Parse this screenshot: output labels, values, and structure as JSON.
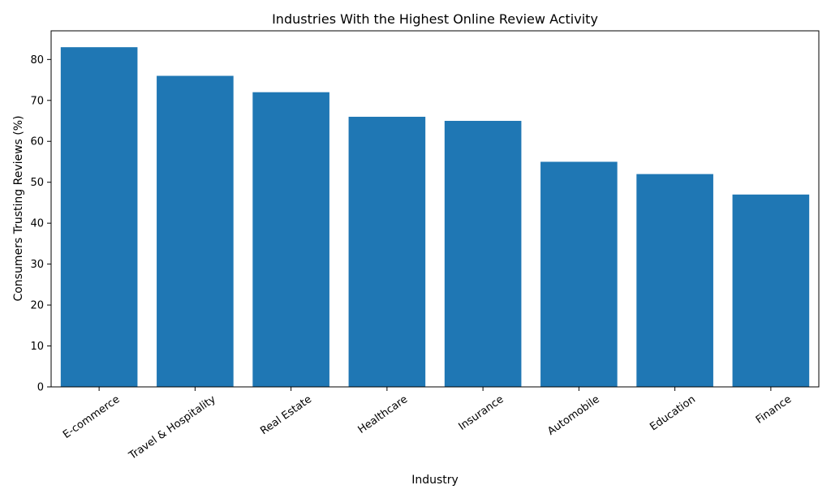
{
  "chart_data": {
    "type": "bar",
    "title": "Industries With the Highest Online Review Activity",
    "xlabel": "Industry",
    "ylabel": "Consumers Trusting Reviews (%)",
    "categories": [
      "E-commerce",
      "Travel & Hospitality",
      "Real Estate",
      "Healthcare",
      "Insurance",
      "Automobile",
      "Education",
      "Finance"
    ],
    "values": [
      83,
      76,
      72,
      66,
      65,
      55,
      52,
      47
    ],
    "ylim": [
      0,
      87
    ],
    "yticks": [
      0,
      10,
      20,
      30,
      40,
      50,
      60,
      70,
      80
    ],
    "bar_color": "#1f77b4",
    "grid": false,
    "legend": "none"
  }
}
